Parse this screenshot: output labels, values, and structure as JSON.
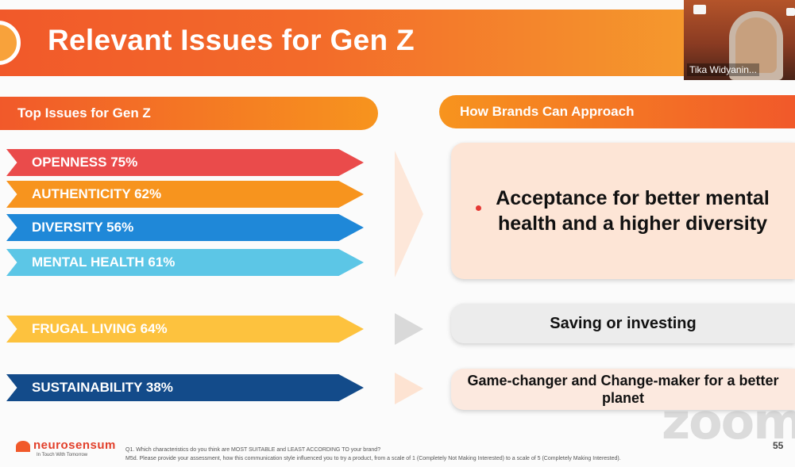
{
  "slide": {
    "title": "Relevant Issues for Gen Z",
    "left_header": "Top Issues for Gen Z",
    "right_header": "How Brands Can Approach",
    "issues": [
      {
        "label": "OPENNESS 75%",
        "color": "#ea4b4b"
      },
      {
        "label": "AUTHENTICITY 62%",
        "color": "#f7941e"
      },
      {
        "label": "DIVERSITY 56%",
        "color": "#1f88d8"
      },
      {
        "label": "MENTAL HEALTH 61%",
        "color": "#5cc6e6"
      },
      {
        "label": "FRUGAL LIVING 64%",
        "color": "#fdc23e"
      },
      {
        "label": "SUSTAINABILITY 38%",
        "color": "#134b8a"
      }
    ],
    "approaches": [
      "Acceptance for better mental health and a higher diversity",
      "Saving or investing",
      "Game-changer and Change-maker for a better planet"
    ],
    "brand": "neurosensum",
    "tagline": "In Touch With Tomorrow",
    "footnote_lines": [
      "Q1. Which characteristics do you think are MOST SUITABLE and LEAST ACCORDING TO your brand?",
      "M5d. Please provide your assessment, how this communication style influenced you to try a product, from a scale of 1 (Completely Not Making Interested) to a scale of 5 (Completely Making Interested)."
    ],
    "page_number": "55"
  },
  "video": {
    "participant_name": "Tika Widyanin..."
  },
  "watermark": "zoom",
  "colors": {
    "accent": "#f1592a",
    "accent_light": "#f7941e"
  }
}
